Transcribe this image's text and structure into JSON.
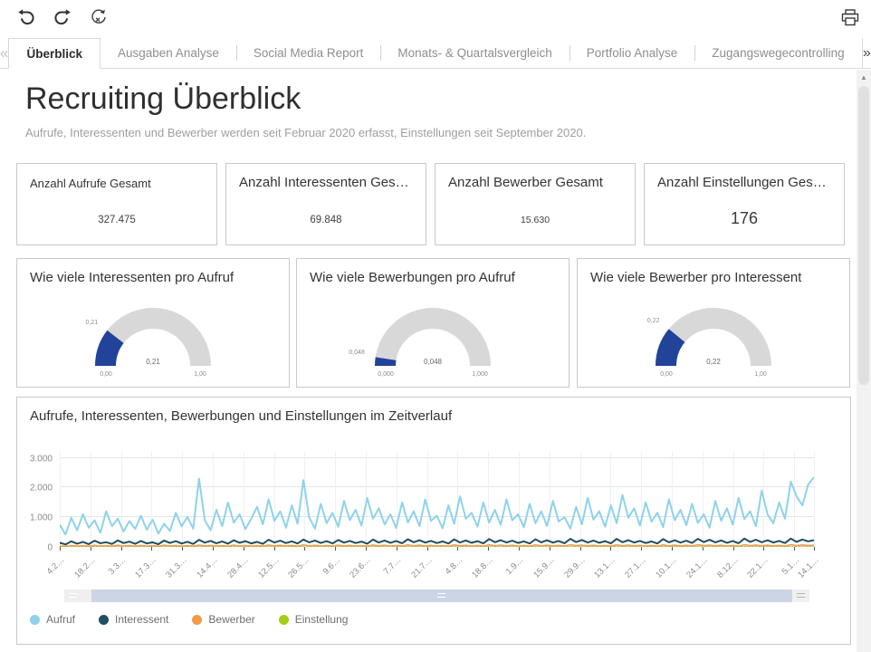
{
  "toolbar": {
    "icons": {
      "undo": "undo-arrow",
      "redo": "redo-arrow",
      "reset": "reset-circle-x",
      "print": "printer"
    }
  },
  "icons_glyphs": {
    "collapse_left": "«",
    "expand_right": "»",
    "scroll_up": "▲"
  },
  "tabs": {
    "items": [
      {
        "label": "Überblick",
        "active": true
      },
      {
        "label": "Ausgaben Analyse",
        "active": false
      },
      {
        "label": "Social Media Report",
        "active": false
      },
      {
        "label": "Monats- & Quartalsvergleich",
        "active": false
      },
      {
        "label": "Portfolio Analyse",
        "active": false
      },
      {
        "label": "Zugangswegecontrolling",
        "active": false
      }
    ]
  },
  "page": {
    "title": "Recruiting Überblick",
    "subtitle": "Aufrufe, Interessenten und Bewerber werden seit Februar 2020 erfasst, Einstellungen seit September 2020."
  },
  "kpi_cards": [
    {
      "title": "Anzahl Aufrufe Gesamt",
      "value": "327.475"
    },
    {
      "title": "Anzahl Interessenten Ges…",
      "value": "69.848"
    },
    {
      "title": "Anzahl Bewerber Gesamt",
      "value": "15.630"
    },
    {
      "title": "Anzahl Einstellungen Ges…",
      "value": "176"
    }
  ],
  "gauges": [
    {
      "title": "Wie viele Interessenten pro Aufruf",
      "value": 0.21,
      "value_label": "0,21",
      "threshold_label": "0,21",
      "min_label": "0,00",
      "max_label": "1,00",
      "fill_color": "#22439a",
      "track_color": "#d8d8d8"
    },
    {
      "title": "Wie viele Bewerbungen pro Aufruf",
      "value": 0.048,
      "value_label": "0,048",
      "threshold_label": "0,048",
      "min_label": "0,000",
      "max_label": "1,000",
      "fill_color": "#22439a",
      "track_color": "#d8d8d8"
    },
    {
      "title": "Wie viele Bewerber pro Interessent",
      "value": 0.22,
      "value_label": "0,22",
      "threshold_label": "0,22",
      "min_label": "0,00",
      "max_label": "1,00",
      "fill_color": "#22439a",
      "track_color": "#d8d8d8"
    }
  ],
  "chart_data": {
    "type": "line",
    "title": "Aufrufe, Interessenten, Bewerbungen und Einstellungen im Zeitverlauf",
    "xlabel": "",
    "ylabel": "",
    "ylim": [
      0,
      3200
    ],
    "grid": true,
    "legend_position": "bottom-left",
    "y_ticks": [
      {
        "label": "0",
        "value": 0
      },
      {
        "label": "1.000",
        "value": 1000
      },
      {
        "label": "2.000",
        "value": 2000
      },
      {
        "label": "3.000",
        "value": 3000
      }
    ],
    "x_total_days": 345,
    "x_ticks": [
      {
        "label": "4.2…",
        "day": 0
      },
      {
        "label": "18.2…",
        "day": 14
      },
      {
        "label": "3.3…",
        "day": 28
      },
      {
        "label": "17.3…",
        "day": 42
      },
      {
        "label": "31.3…",
        "day": 56
      },
      {
        "label": "14.4…",
        "day": 70
      },
      {
        "label": "28.4…",
        "day": 84
      },
      {
        "label": "12.5…",
        "day": 98
      },
      {
        "label": "26.5…",
        "day": 112
      },
      {
        "label": "9.6…",
        "day": 126
      },
      {
        "label": "23.6…",
        "day": 140
      },
      {
        "label": "7.7…",
        "day": 154
      },
      {
        "label": "21.7…",
        "day": 168
      },
      {
        "label": "4.8…",
        "day": 182
      },
      {
        "label": "18.8…",
        "day": 196
      },
      {
        "label": "1.9…",
        "day": 210
      },
      {
        "label": "15.9…",
        "day": 224
      },
      {
        "label": "29.9…",
        "day": 238
      },
      {
        "label": "13.1…",
        "day": 252
      },
      {
        "label": "27.1…",
        "day": 266
      },
      {
        "label": "10.1…",
        "day": 280
      },
      {
        "label": "24.1…",
        "day": 294
      },
      {
        "label": "8.12…",
        "day": 308
      },
      {
        "label": "22.1…",
        "day": 322
      },
      {
        "label": "5.1…",
        "day": 336
      },
      {
        "label": "14.1…",
        "day": 345
      }
    ],
    "series": [
      {
        "name": "Aufruf",
        "color": "#8ed2ec",
        "width": 2,
        "dashed": false,
        "values": [
          750,
          420,
          980,
          560,
          1100,
          650,
          900,
          480,
          1200,
          700,
          950,
          520,
          870,
          610,
          1050,
          580,
          920,
          450,
          780,
          540,
          1150,
          690,
          1010,
          620,
          2300,
          900,
          560,
          1250,
          700,
          1500,
          820,
          1100,
          600,
          950,
          1350,
          760,
          1600,
          880,
          1200,
          650,
          1400,
          780,
          2250,
          1000,
          620,
          1450,
          800,
          1150,
          680,
          1550,
          900,
          1250,
          720,
          1650,
          950,
          1300,
          760,
          1100,
          640,
          1500,
          820,
          1200,
          700,
          1600,
          880,
          1050,
          630,
          1400,
          780,
          1700,
          950,
          1150,
          680,
          1500,
          820,
          1250,
          740,
          1600,
          900,
          1100,
          660,
          1450,
          800,
          1200,
          700,
          1550,
          860,
          1000,
          620,
          1350,
          760,
          1650,
          920,
          1200,
          680,
          1400,
          800,
          1750,
          980,
          1300,
          720,
          1500,
          850,
          1150,
          670,
          1600,
          900,
          1250,
          730,
          1450,
          810,
          1100,
          650,
          1550,
          880,
          1300,
          750,
          1650,
          940,
          1200,
          700,
          1900,
          1100,
          800,
          1500,
          950,
          2200,
          1700,
          1400,
          2100,
          2350
        ]
      },
      {
        "name": "Interessent",
        "color": "#1f4e62",
        "width": 2,
        "dashed": false,
        "values": [
          140,
          85,
          190,
          110,
          170,
          95,
          210,
          125,
          160,
          100,
          220,
          130,
          180,
          105,
          200,
          120,
          155,
          90,
          215,
          135,
          195,
          115,
          175,
          100,
          240,
          145,
          205,
          125,
          185,
          110,
          225,
          140,
          195,
          120,
          170,
          105,
          245,
          150,
          210,
          130,
          190,
          115,
          250,
          155,
          215,
          135,
          195,
          120,
          235,
          145,
          205,
          130,
          180,
          110,
          250,
          150,
          215,
          140,
          200,
          125,
          260,
          160,
          225,
          145,
          205,
          130,
          185,
          115,
          255,
          150,
          220,
          140,
          195,
          120,
          265,
          160,
          230,
          150,
          210,
          135,
          190,
          115,
          260,
          155,
          225,
          145,
          200,
          125,
          275,
          165,
          235,
          150,
          215,
          140,
          195,
          120,
          270,
          160,
          230,
          150,
          205,
          130,
          185,
          115,
          265,
          155,
          225,
          145,
          210,
          135,
          275,
          165,
          240,
          155,
          220,
          140,
          200,
          125,
          280,
          170,
          245,
          160,
          225,
          150,
          205,
          130,
          280,
          170,
          250,
          190,
          230
        ]
      },
      {
        "name": "Bewerber",
        "color": "#f29a49",
        "width": 1.6,
        "dashed": false,
        "values": [
          35,
          20,
          50,
          28,
          42,
          24,
          55,
          30,
          45,
          26,
          58,
          32,
          48,
          25,
          52,
          28,
          40,
          22,
          60,
          34,
          50,
          27,
          44,
          24,
          62,
          36,
          52,
          28,
          46,
          25,
          58,
          32,
          50,
          27,
          44,
          26,
          64,
          36,
          54,
          30,
          48,
          26,
          66,
          38,
          56,
          32,
          50,
          28,
          60,
          34,
          52,
          30,
          46,
          26,
          64,
          36,
          56,
          32,
          50,
          28,
          68,
          40,
          58,
          34,
          52,
          30,
          46,
          26,
          66,
          38,
          56,
          32,
          50,
          28,
          70,
          40,
          60,
          36,
          54,
          30,
          48,
          26,
          68,
          38,
          58,
          34,
          52,
          30,
          72,
          42,
          60,
          36,
          55,
          32,
          50,
          28,
          70,
          40,
          62,
          36,
          52,
          30,
          48,
          26,
          68,
          38,
          58,
          34,
          54,
          30,
          72,
          42,
          62,
          36,
          56,
          32,
          50,
          28,
          74,
          44,
          64,
          38,
          58,
          34,
          52,
          30,
          76,
          44,
          66,
          50,
          60
        ]
      },
      {
        "name": "Einstellung",
        "color": "#a5cc16",
        "width": 1.2,
        "dashed": true,
        "values": [
          0,
          0,
          0,
          0,
          0,
          0,
          0,
          0,
          0,
          0,
          0,
          0,
          0,
          0,
          0,
          0,
          0,
          0,
          0,
          0,
          0,
          0,
          0,
          0,
          0,
          0,
          0,
          0,
          0,
          0,
          0,
          0,
          0,
          0,
          0,
          0,
          0,
          0,
          0,
          0,
          0,
          0,
          0,
          0,
          0,
          0,
          0,
          0,
          0,
          0,
          0,
          0,
          0,
          0,
          0,
          0,
          0,
          0,
          0,
          0,
          0,
          0,
          0,
          0,
          0,
          0,
          0,
          0,
          0,
          0,
          0,
          0,
          0,
          0,
          0,
          0,
          0,
          0,
          0,
          0,
          3,
          1,
          4,
          2,
          5,
          2,
          6,
          3,
          4,
          2,
          5,
          3,
          6,
          2,
          4,
          3,
          7,
          3,
          5,
          2,
          4,
          2,
          6,
          3,
          5,
          2,
          4,
          3,
          6,
          2,
          7,
          3,
          5,
          2,
          6,
          3,
          4,
          2,
          8,
          4,
          6,
          3,
          5,
          2,
          4,
          2,
          7,
          3,
          6,
          4,
          5
        ]
      }
    ]
  },
  "colors": {
    "accent_blue": "#22439a",
    "card_border": "#c9c9c9",
    "navigator_bar": "#ccd5e6"
  }
}
